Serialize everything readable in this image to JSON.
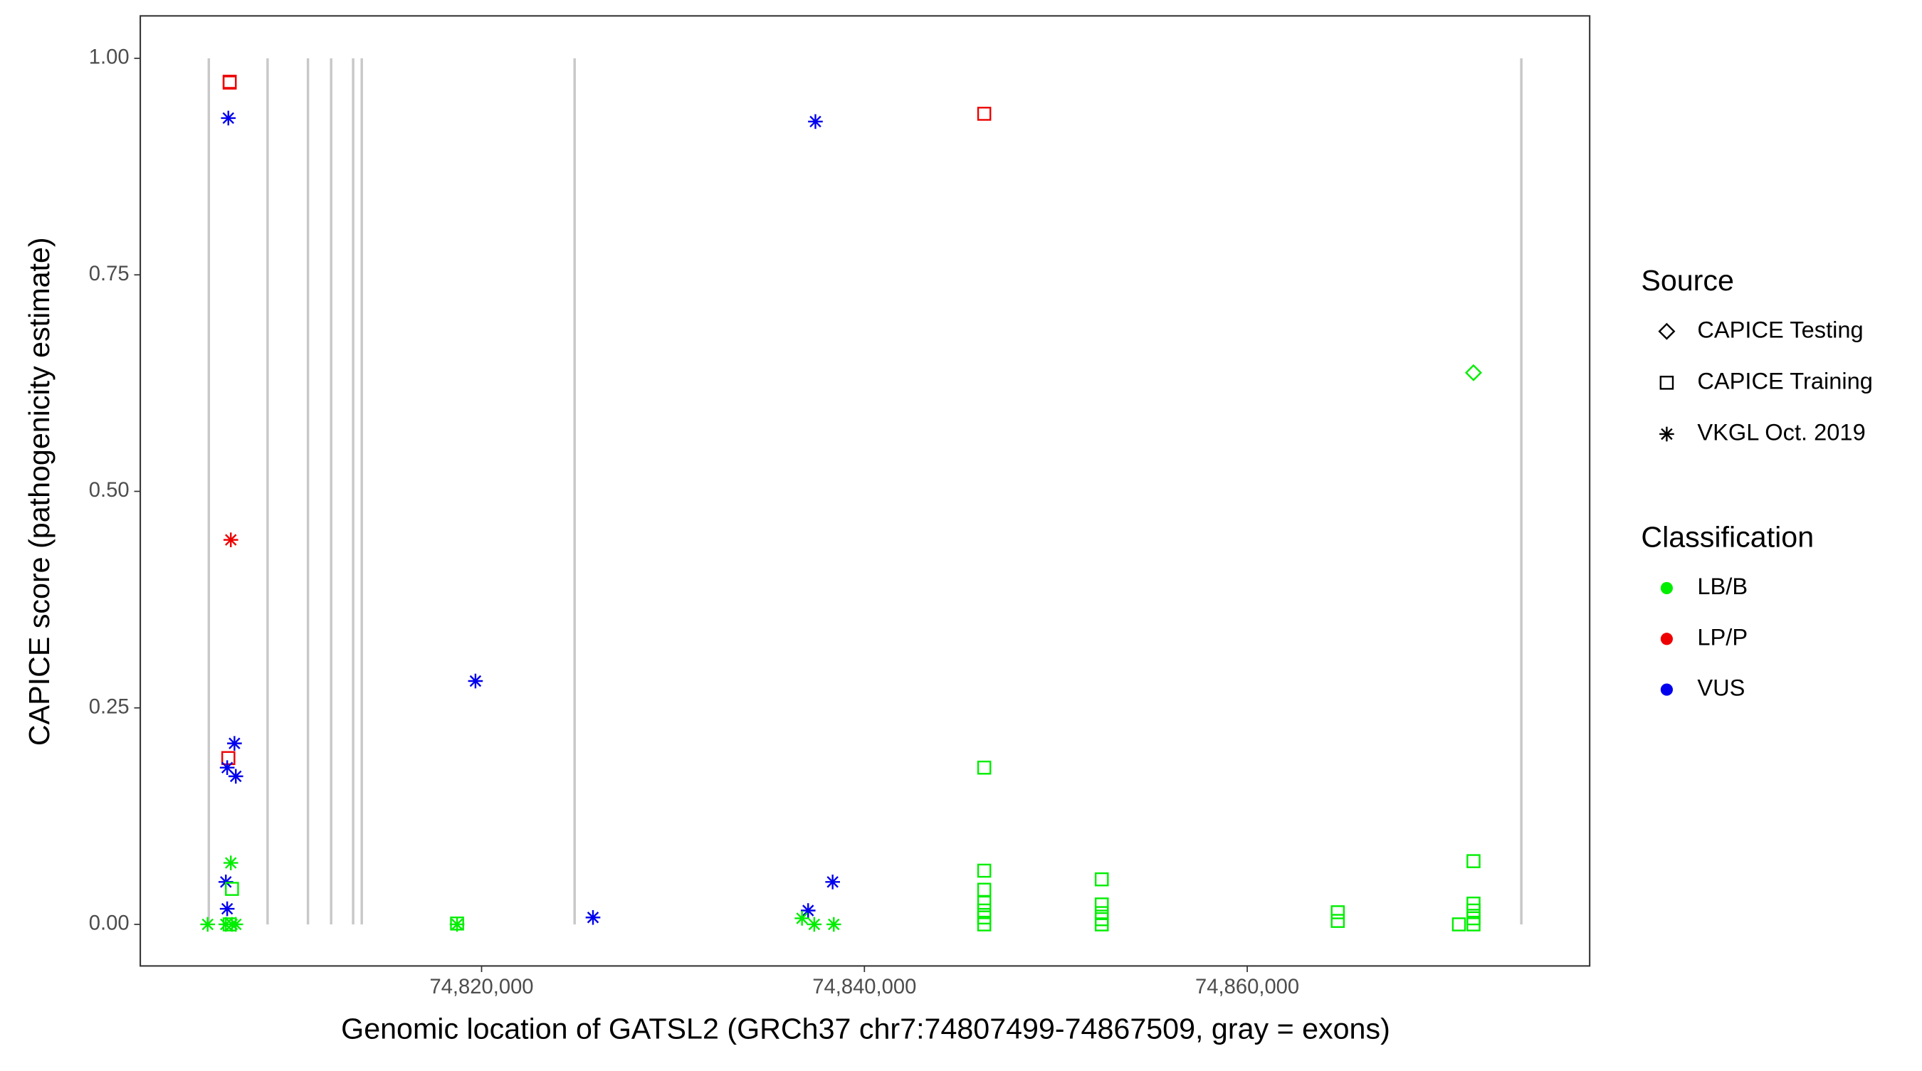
{
  "chart_data": {
    "type": "scatter",
    "x_label": "Genomic location of GATSL2 (GRCh37 chr7:74807499-74867509, gray = exons)",
    "y_label": "CAPICE score (pathogenicity estimate)",
    "xlim": [
      74802170,
      74877890
    ],
    "ylim": [
      -0.048,
      1.049
    ],
    "xticks": [
      {
        "value": 74820000,
        "label": "74,820,000"
      },
      {
        "value": 74840000,
        "label": "74,840,000"
      },
      {
        "value": 74860000,
        "label": "74,860,000"
      }
    ],
    "yticks": [
      {
        "value": 0,
        "label": "0.00"
      },
      {
        "value": 0.25,
        "label": "0.25"
      },
      {
        "value": 0.5,
        "label": "0.50"
      },
      {
        "value": 0.75,
        "label": "0.75"
      },
      {
        "value": 1,
        "label": "1.00"
      }
    ],
    "exons": [
      74805750,
      74808820,
      74810930,
      74812140,
      74813290,
      74813740,
      74824860,
      74874320
    ],
    "exon_color": "#c8c8c8",
    "legend_source": {
      "title": "Source",
      "items": [
        {
          "name": "CAPICE Testing",
          "shape": "diamond"
        },
        {
          "name": "CAPICE Training",
          "shape": "square"
        },
        {
          "name": "VKGL Oct. 2019",
          "shape": "asterisk"
        }
      ]
    },
    "legend_class": {
      "title": "Classification",
      "items": [
        {
          "name": "LB/B",
          "color": "#00ee00"
        },
        {
          "name": "LP/P",
          "color": "#ee0000"
        },
        {
          "name": "VUS",
          "color": "#0000ee"
        }
      ]
    },
    "groups": [
      {
        "source": "CAPICE Training",
        "classification": "LP/P",
        "x": [
          74806840,
          74806840,
          74846260,
          74806770
        ],
        "y": [
          0.973,
          0.972,
          0.936,
          0.192
        ]
      },
      {
        "source": "VKGL Oct. 2019",
        "classification": "LP/P",
        "x": [
          74806900
        ],
        "y": [
          0.444
        ]
      },
      {
        "source": "VKGL Oct. 2019",
        "classification": "VUS",
        "x": [
          74806770,
          74837440,
          74819680,
          74807090,
          74806710,
          74807160,
          74806640,
          74806710,
          74825820,
          74837060,
          74838340
        ],
        "y": [
          0.931,
          0.927,
          0.281,
          0.209,
          0.181,
          0.171,
          0.049,
          0.018,
          0.008,
          0.016,
          0.049
        ]
      },
      {
        "source": "VKGL Oct. 2019",
        "classification": "LB/B",
        "x": [
          74805690,
          74806900,
          74806640,
          74806960,
          74807160,
          74818720,
          74836740,
          74837380,
          74838400
        ],
        "y": [
          0,
          0.071,
          0,
          0,
          0,
          0,
          0.007,
          0,
          0
        ]
      },
      {
        "source": "CAPICE Training",
        "classification": "LB/B",
        "x": [
          74806960,
          74806840,
          74818720,
          74846260,
          74846260,
          74846260,
          74846260,
          74846260,
          74846260,
          74846260,
          74852400,
          74852400,
          74852400,
          74852400,
          74852400,
          74864730,
          74864730,
          74871820,
          74871820,
          74871820,
          74871820,
          74871820,
          74871060
        ],
        "y": [
          0.041,
          0,
          0.001,
          0.181,
          0.062,
          0.04,
          0.025,
          0.016,
          0.008,
          0,
          0.052,
          0.023,
          0.013,
          0.006,
          0,
          0.014,
          0.004,
          0.073,
          0.024,
          0.016,
          0.007,
          0,
          0
        ]
      },
      {
        "source": "CAPICE Testing",
        "classification": "LB/B",
        "x": [
          74871820
        ],
        "y": [
          0.637
        ]
      }
    ]
  }
}
